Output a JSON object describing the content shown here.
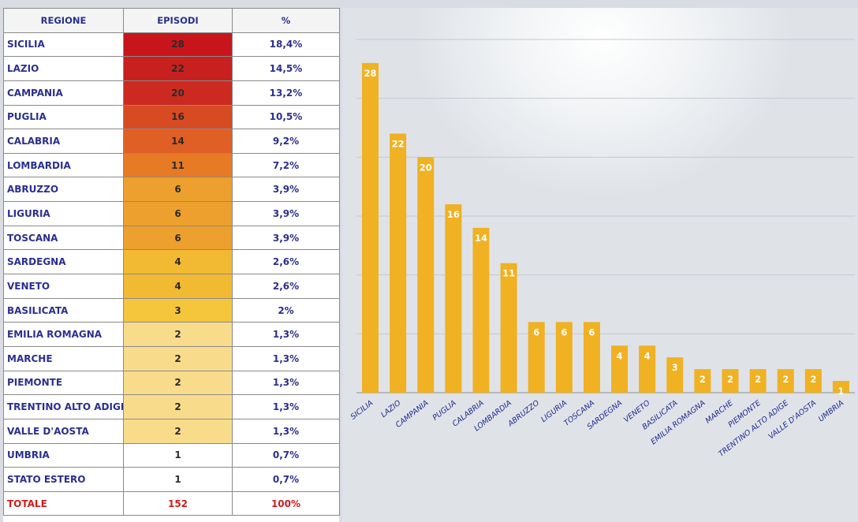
{
  "table": {
    "headers": [
      "REGIONE",
      "EPISODI",
      "%"
    ],
    "rows": [
      {
        "region": "SICILIA",
        "count": "28",
        "pct": "18,4%",
        "color": "#c8151b"
      },
      {
        "region": "LAZIO",
        "count": "22",
        "pct": "14,5%",
        "color": "#c8201e"
      },
      {
        "region": "CAMPANIA",
        "count": "20",
        "pct": "13,2%",
        "color": "#cc2a20"
      },
      {
        "region": "PUGLIA",
        "count": "16",
        "pct": "10,5%",
        "color": "#d84b22"
      },
      {
        "region": "CALABRIA",
        "count": "14",
        "pct": "9,2%",
        "color": "#e05f24"
      },
      {
        "region": "LOMBARDIA",
        "count": "11",
        "pct": "7,2%",
        "color": "#e67a25"
      },
      {
        "region": "ABRUZZO",
        "count": "6",
        "pct": "3,9%",
        "color": "#eda02d"
      },
      {
        "region": "LIGURIA",
        "count": "6",
        "pct": "3,9%",
        "color": "#eda02d"
      },
      {
        "region": "TOSCANA",
        "count": "6",
        "pct": "3,9%",
        "color": "#eda02d"
      },
      {
        "region": "SARDEGNA",
        "count": "4",
        "pct": "2,6%",
        "color": "#f2ba32"
      },
      {
        "region": "VENETO",
        "count": "4",
        "pct": "2,6%",
        "color": "#f2ba32"
      },
      {
        "region": "BASILICATA",
        "count": "3",
        "pct": "2%",
        "color": "#f5c63c"
      },
      {
        "region": "EMILIA ROMAGNA",
        "count": "2",
        "pct": "1,3%",
        "color": "#f8dc8c"
      },
      {
        "region": "MARCHE",
        "count": "2",
        "pct": "1,3%",
        "color": "#f8dc8c"
      },
      {
        "region": "PIEMONTE",
        "count": "2",
        "pct": "1,3%",
        "color": "#f8dc8c"
      },
      {
        "region": "TRENTINO ALTO ADIGE",
        "count": "2",
        "pct": "1,3%",
        "color": "#f8dc8c"
      },
      {
        "region": "VALLE D'AOSTA",
        "count": "2",
        "pct": "1,3%",
        "color": "#f8dc8c"
      },
      {
        "region": "UMBRIA",
        "count": "1",
        "pct": "0,7%",
        "color": "#ffffff"
      },
      {
        "region": "STATO ESTERO",
        "count": "1",
        "pct": "0,7%",
        "color": "#ffffff"
      }
    ],
    "total": {
      "region": "TOTALE",
      "count": "152",
      "pct": "100%"
    }
  },
  "chart_data": {
    "type": "bar",
    "categories": [
      "SICILIA",
      "LAZIO",
      "CAMPANIA",
      "PUGLIA",
      "CALABRIA",
      "LOMBARDIA",
      "ABRUZZO",
      "LIGURIA",
      "TOSCANA",
      "SARDEGNA",
      "VENETO",
      "BASILICATA",
      "EMILIA ROMAGNA",
      "MARCHE",
      "PIEMONTE",
      "TRENTINO ALTO ADIGE",
      "VALLE D'AOSTA",
      "UMBRIA"
    ],
    "values": [
      28,
      22,
      20,
      16,
      14,
      11,
      6,
      6,
      6,
      4,
      4,
      3,
      2,
      2,
      2,
      2,
      2,
      1
    ],
    "data_labels": [
      "28",
      "22",
      "20",
      "16",
      "14",
      "11",
      "6",
      "6",
      "6",
      "4",
      "4",
      "3",
      "2",
      "2",
      "2",
      "2",
      "2",
      "1"
    ],
    "title": "",
    "xlabel": "",
    "ylabel": "",
    "ylim": [
      0,
      30
    ],
    "grid": true,
    "legend": "none",
    "bar_color": "#f0b122",
    "label_color": "#ffffff",
    "axis_label_color": "#1e2a8f",
    "grid_color": "#c4c9d0"
  }
}
